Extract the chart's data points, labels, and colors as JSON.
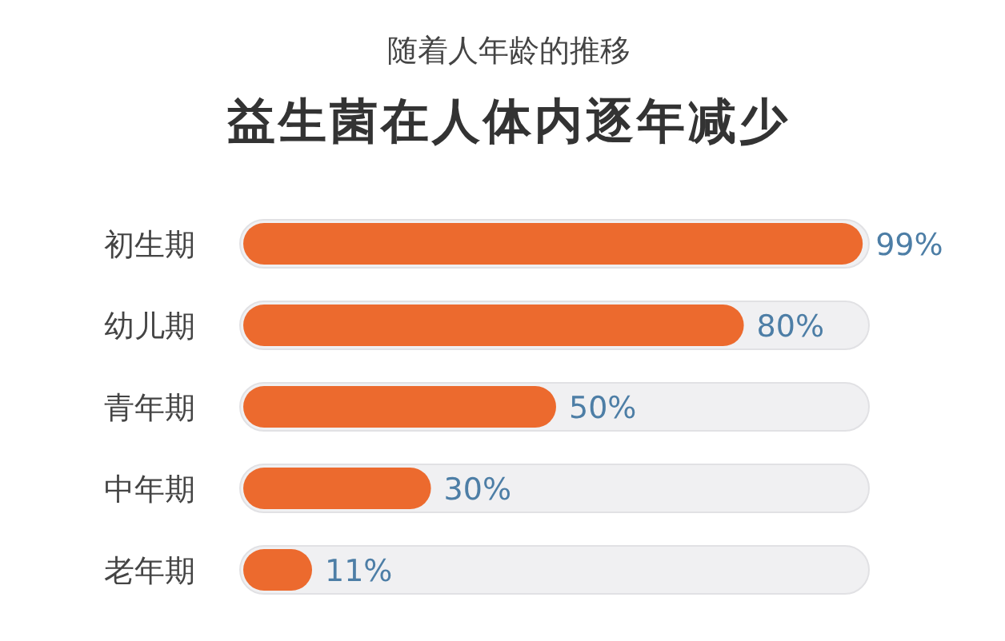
{
  "chart_data": {
    "type": "bar",
    "orientation": "horizontal",
    "subtitle": "随着人年龄的推移",
    "title": "益生菌在人体内逐年减少",
    "categories": [
      "初生期",
      "幼儿期",
      "青年期",
      "中年期",
      "老年期"
    ],
    "values": [
      99,
      80,
      50,
      30,
      11
    ],
    "value_labels": [
      "99%",
      "80%",
      "50%",
      "30%",
      "11%"
    ],
    "color": "#ec6a2e",
    "xlim": [
      0,
      100
    ]
  }
}
